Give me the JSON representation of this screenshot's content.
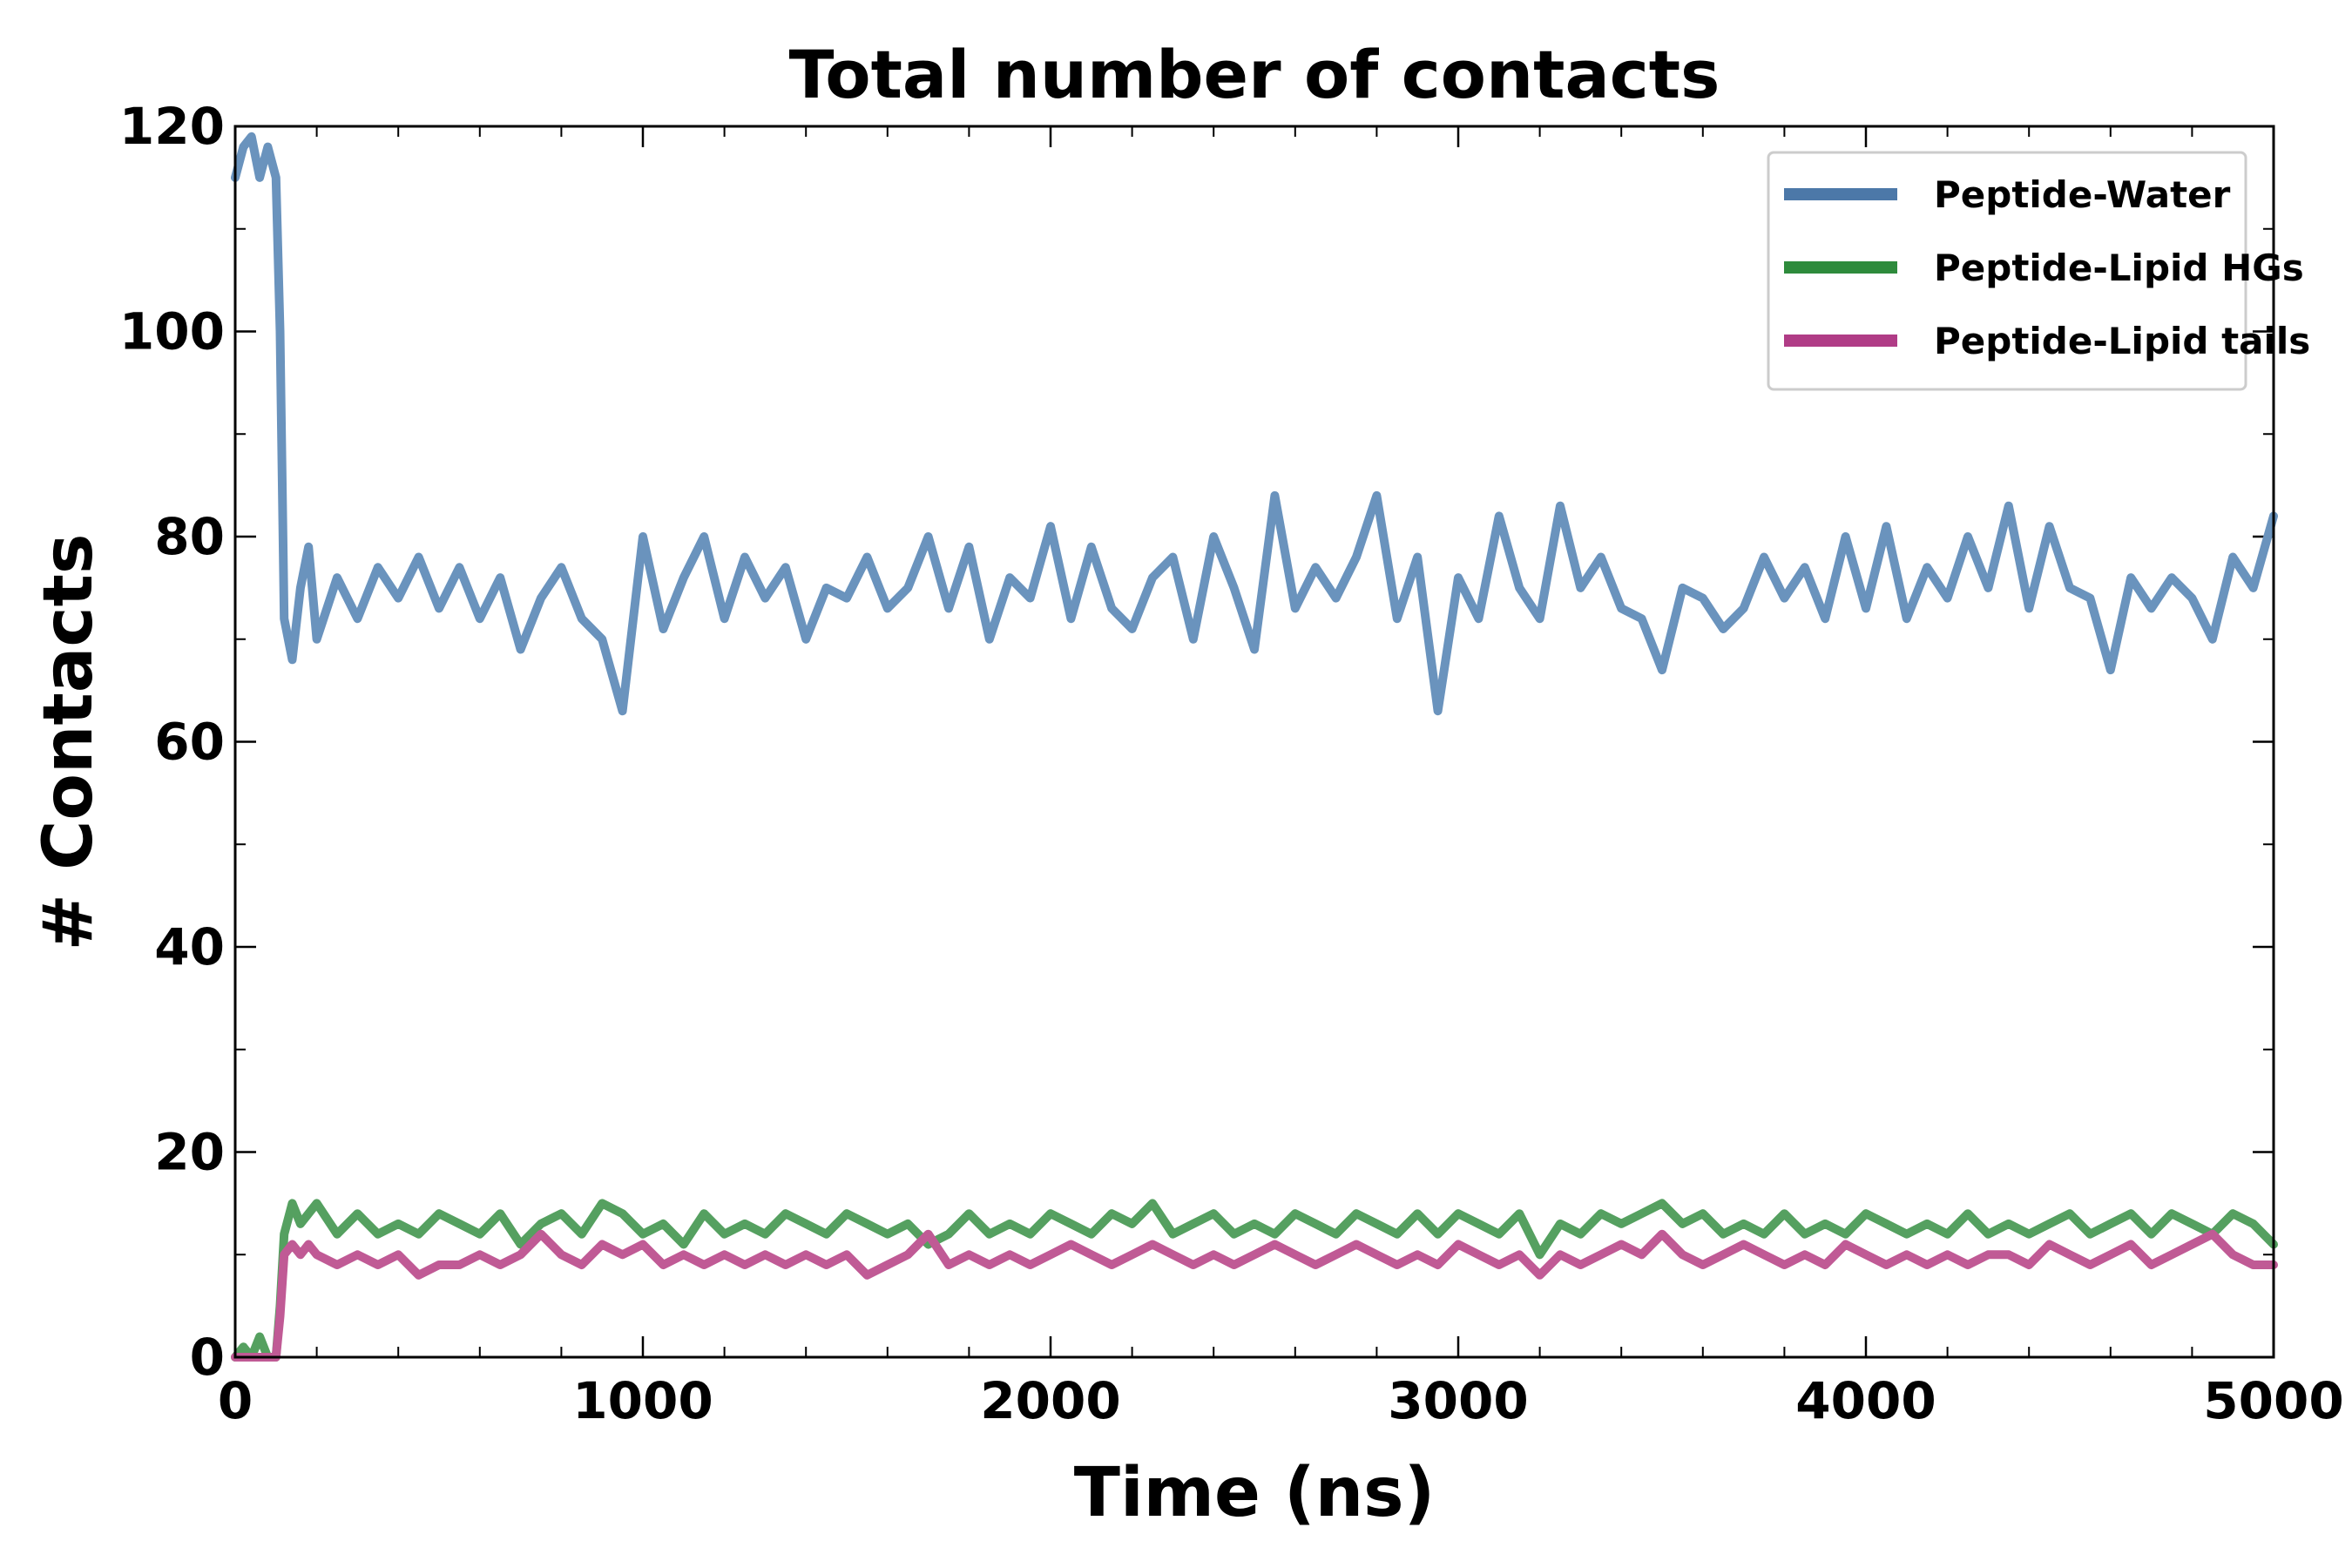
{
  "chart_data": {
    "type": "line",
    "title": "Total number of contacts",
    "xlabel": "Time (ns)",
    "ylabel": "# Contacts",
    "xlim": [
      0,
      5000
    ],
    "ylim": [
      0,
      120
    ],
    "xticks": [
      0,
      1000,
      2000,
      3000,
      4000,
      5000
    ],
    "yticks": [
      0,
      20,
      40,
      60,
      80,
      100,
      120
    ],
    "xtick_labels": [
      "0",
      "1000",
      "2000",
      "3000",
      "4000",
      "5000"
    ],
    "ytick_labels": [
      "0",
      "20",
      "40",
      "60",
      "80",
      "100",
      "120"
    ],
    "minor_x_step": 200,
    "minor_y_step": 10,
    "grid": false,
    "legend_position": "top-right",
    "x": [
      0,
      20,
      40,
      60,
      80,
      100,
      110,
      120,
      140,
      160,
      180,
      200,
      250,
      300,
      350,
      400,
      450,
      500,
      550,
      600,
      650,
      700,
      750,
      800,
      850,
      900,
      950,
      1000,
      1050,
      1100,
      1150,
      1200,
      1250,
      1300,
      1350,
      1400,
      1450,
      1500,
      1550,
      1600,
      1650,
      1700,
      1750,
      1800,
      1850,
      1900,
      1950,
      2000,
      2050,
      2100,
      2150,
      2200,
      2250,
      2300,
      2350,
      2400,
      2450,
      2500,
      2550,
      2600,
      2650,
      2700,
      2750,
      2800,
      2850,
      2900,
      2950,
      3000,
      3050,
      3100,
      3150,
      3200,
      3250,
      3300,
      3350,
      3400,
      3450,
      3500,
      3550,
      3600,
      3650,
      3700,
      3750,
      3800,
      3850,
      3900,
      3950,
      4000,
      4050,
      4100,
      4150,
      4200,
      4250,
      4300,
      4350,
      4400,
      4450,
      4500,
      4550,
      4600,
      4650,
      4700,
      4750,
      4800,
      4850,
      4900,
      4950,
      5000
    ],
    "series": [
      {
        "name": "Peptide-Water",
        "color": "#6a93bd",
        "legend_color": "#4c78a8",
        "values": [
          115,
          118,
          119,
          115,
          118,
          115,
          100,
          72,
          68,
          75,
          79,
          70,
          76,
          72,
          77,
          74,
          78,
          73,
          77,
          72,
          76,
          69,
          74,
          77,
          72,
          70,
          63,
          80,
          71,
          76,
          80,
          72,
          78,
          74,
          77,
          70,
          75,
          74,
          78,
          73,
          75,
          80,
          73,
          79,
          70,
          76,
          74,
          81,
          72,
          79,
          73,
          71,
          76,
          78,
          70,
          80,
          75,
          69,
          84,
          73,
          77,
          74,
          78,
          84,
          72,
          78,
          63,
          76,
          72,
          82,
          75,
          72,
          83,
          75,
          78,
          73,
          72,
          67,
          75,
          74,
          71,
          73,
          78,
          74,
          77,
          72,
          80,
          73,
          81,
          72,
          77,
          74,
          80,
          75,
          83,
          73,
          81,
          75,
          74,
          67,
          76,
          73,
          76,
          74,
          70,
          78,
          75,
          82
        ]
      },
      {
        "name": "Peptide-Lipid HGs",
        "color": "#55a060",
        "legend_color": "#2e8b3c",
        "values": [
          0,
          1,
          0,
          2,
          0,
          0,
          5,
          12,
          15,
          13,
          14,
          15,
          12,
          14,
          12,
          13,
          12,
          14,
          13,
          12,
          14,
          11,
          13,
          14,
          12,
          15,
          14,
          12,
          13,
          11,
          14,
          12,
          13,
          12,
          14,
          13,
          12,
          14,
          13,
          12,
          13,
          11,
          12,
          14,
          12,
          13,
          12,
          14,
          13,
          12,
          14,
          13,
          15,
          12,
          13,
          14,
          12,
          13,
          12,
          14,
          13,
          12,
          14,
          13,
          12,
          14,
          12,
          14,
          13,
          12,
          14,
          10,
          13,
          12,
          14,
          13,
          14,
          15,
          13,
          14,
          12,
          13,
          12,
          14,
          12,
          13,
          12,
          14,
          13,
          12,
          13,
          12,
          14,
          12,
          13,
          12,
          13,
          14,
          12,
          13,
          14,
          12,
          14,
          13,
          12,
          14,
          13,
          11
        ]
      },
      {
        "name": "Peptide-Lipid tails",
        "color": "#c05a95",
        "legend_color": "#b03c86",
        "values": [
          0,
          0,
          0,
          0,
          0,
          0,
          4,
          10,
          11,
          10,
          11,
          10,
          9,
          10,
          9,
          10,
          8,
          9,
          9,
          10,
          9,
          10,
          12,
          10,
          9,
          11,
          10,
          11,
          9,
          10,
          9,
          10,
          9,
          10,
          9,
          10,
          9,
          10,
          8,
          9,
          10,
          12,
          9,
          10,
          9,
          10,
          9,
          10,
          11,
          10,
          9,
          10,
          11,
          10,
          9,
          10,
          9,
          10,
          11,
          10,
          9,
          10,
          11,
          10,
          9,
          10,
          9,
          11,
          10,
          9,
          10,
          8,
          10,
          9,
          10,
          11,
          10,
          12,
          10,
          9,
          10,
          11,
          10,
          9,
          10,
          9,
          11,
          10,
          9,
          10,
          9,
          10,
          9,
          10,
          10,
          9,
          11,
          10,
          9,
          10,
          11,
          9,
          10,
          11,
          12,
          10,
          9,
          9
        ]
      }
    ]
  }
}
